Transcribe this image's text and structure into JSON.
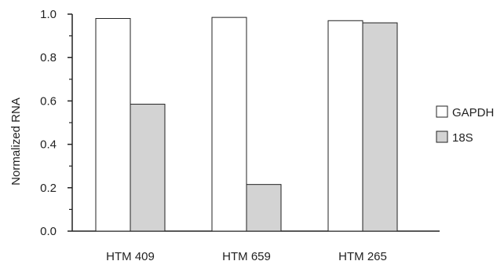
{
  "chart_data": {
    "type": "bar",
    "categories": [
      "HTM 409",
      "HTM 659",
      "HTM 265"
    ],
    "series": [
      {
        "name": "GAPDH",
        "values": [
          0.98,
          0.985,
          0.97
        ],
        "color": "#ffffff"
      },
      {
        "name": "18S",
        "values": [
          0.585,
          0.215,
          0.96
        ],
        "color": "#d3d3d3"
      }
    ],
    "title": "",
    "xlabel": "",
    "ylabel": "Normalized RNA",
    "ylim": [
      0,
      1.0
    ],
    "yticks": [
      0.0,
      0.2,
      0.4,
      0.6,
      0.8,
      1.0
    ],
    "ytick_labels": [
      "0.0",
      "0.2",
      "0.4",
      "0.6",
      "0.8",
      "1.0"
    ],
    "grid": false,
    "legend_position": "right"
  }
}
